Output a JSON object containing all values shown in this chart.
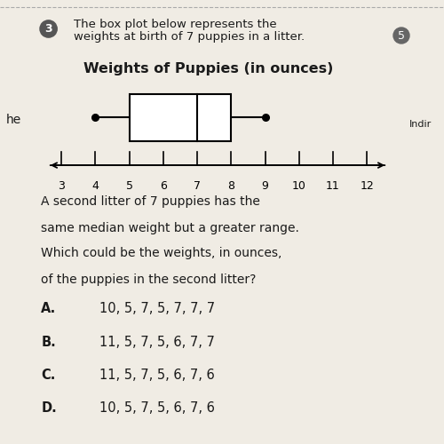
{
  "title": "Weights of Puppies (in ounces)",
  "question_number": "3",
  "question_text_line1": "The box plot below represents the",
  "question_text_line2": "weights at birth of 7 puppies in a litter.",
  "whisker_min": 4,
  "q1": 5,
  "median": 7,
  "q3": 8,
  "whisker_max": 9,
  "axis_min": 3,
  "axis_max": 12,
  "axis_ticks": [
    3,
    4,
    5,
    6,
    7,
    8,
    9,
    10,
    11,
    12
  ],
  "second_question_lines": [
    "A second litter of 7 puppies has the",
    "same median weight but a greater range.",
    "Which could be the weights, in ounces,",
    "of the puppies in the second litter?"
  ],
  "choices": [
    {
      "label": "A.",
      "text": "10, 5, 7, 5, 7, 7, 7"
    },
    {
      "label": "B.",
      "text": "11, 5, 7, 5, 6, 7, 7"
    },
    {
      "label": "C.",
      "text": "11, 5, 7, 5, 6, 7, 6"
    },
    {
      "label": "D.",
      "text": "10, 5, 7, 5, 6, 7, 6"
    }
  ],
  "page_bg": "#f0ece4",
  "left_margin_bg": "#c8c0b4",
  "right_edge_bg": "#c8c0b4",
  "box_facecolor": "#ffffff",
  "box_edgecolor": "#000000",
  "text_color": "#1a1a1a",
  "circle_bg": "#555555",
  "circle_fg": "#ffffff",
  "num5_bg": "#666666",
  "num5_fg": "#ffffff",
  "title_fontsize": 11.5,
  "body_fontsize": 10,
  "choice_fontsize": 10.5
}
